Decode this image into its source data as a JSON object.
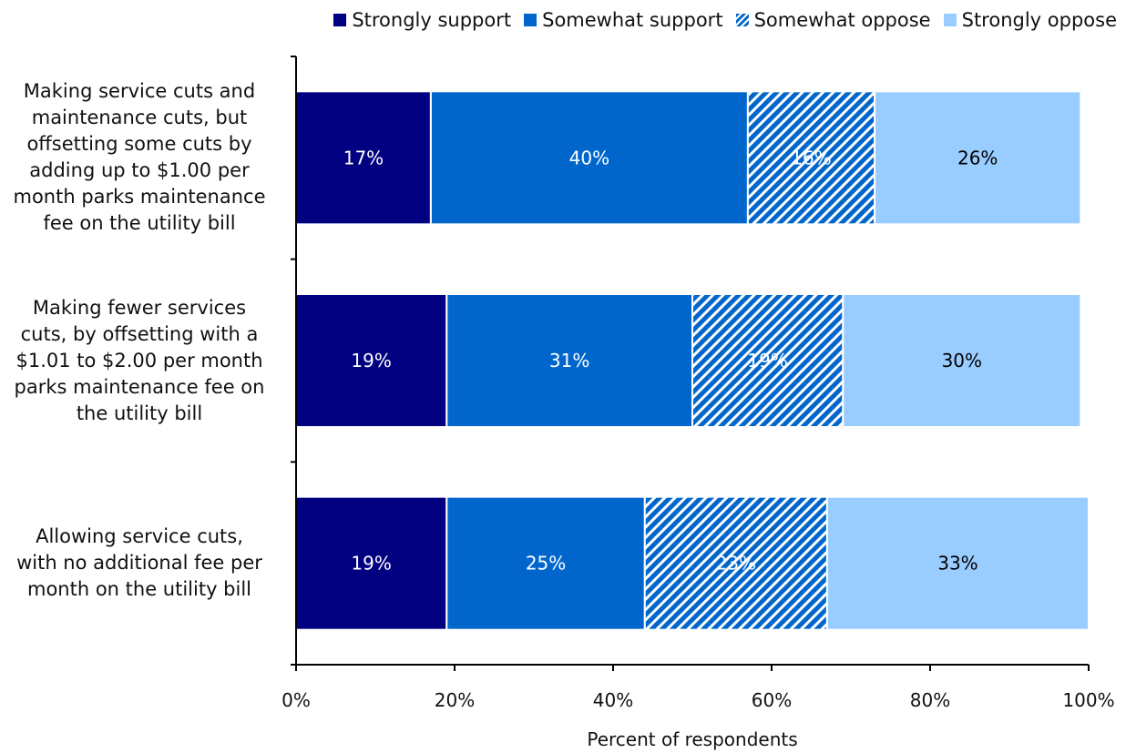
{
  "chart_data": {
    "type": "bar",
    "orientation": "horizontal",
    "stacked": true,
    "categories": [
      "Making service cuts and maintenance cuts, but offsetting some cuts by adding up to $1.00 per month parks maintenance fee on the utility bill",
      "Making fewer services cuts, by offsetting with a $1.01 to $2.00 per month parks maintenance fee on the utility bill",
      "Allowing service cuts, with no additional fee per month on the utility bill"
    ],
    "category_lines": [
      [
        "Making service cuts and",
        "maintenance cuts, but",
        "offsetting some cuts by",
        "adding up to $1.00 per",
        "month parks maintenance",
        "fee on the utility bill"
      ],
      [
        "Making fewer services",
        "cuts, by offsetting with a",
        "$1.01 to $2.00 per month",
        "parks maintenance fee on",
        "the utility bill"
      ],
      [
        "Allowing service cuts,",
        "with no additional fee per",
        "month on the utility bill"
      ]
    ],
    "series": [
      {
        "name": "Strongly support",
        "values": [
          17,
          19,
          19
        ],
        "labels": [
          "17%",
          "19%",
          "19%"
        ],
        "color": "#000080",
        "pattern": "solid",
        "label_color": "#ffffff"
      },
      {
        "name": "Somewhat support",
        "values": [
          40,
          31,
          25
        ],
        "labels": [
          "40%",
          "31%",
          "25%"
        ],
        "color": "#0066cc",
        "pattern": "solid",
        "label_color": "#ffffff"
      },
      {
        "name": "Somewhat oppose",
        "values": [
          16,
          19,
          23
        ],
        "labels": [
          "16%",
          "19%",
          "23%"
        ],
        "color": "#0066cc",
        "pattern": "diagonal-stripes",
        "label_color": "#ffffff"
      },
      {
        "name": "Strongly oppose",
        "values": [
          26,
          30,
          33
        ],
        "labels": [
          "26%",
          "30%",
          "33%"
        ],
        "color": "#99ccff",
        "pattern": "solid",
        "label_color": "#000000"
      }
    ],
    "xlabel": "Percent of respondents",
    "ylabel": "",
    "xlim": [
      0,
      100
    ],
    "xticks": [
      "0%",
      "20%",
      "40%",
      "60%",
      "80%",
      "100%"
    ],
    "grid": false,
    "legend_position": "top-right"
  }
}
